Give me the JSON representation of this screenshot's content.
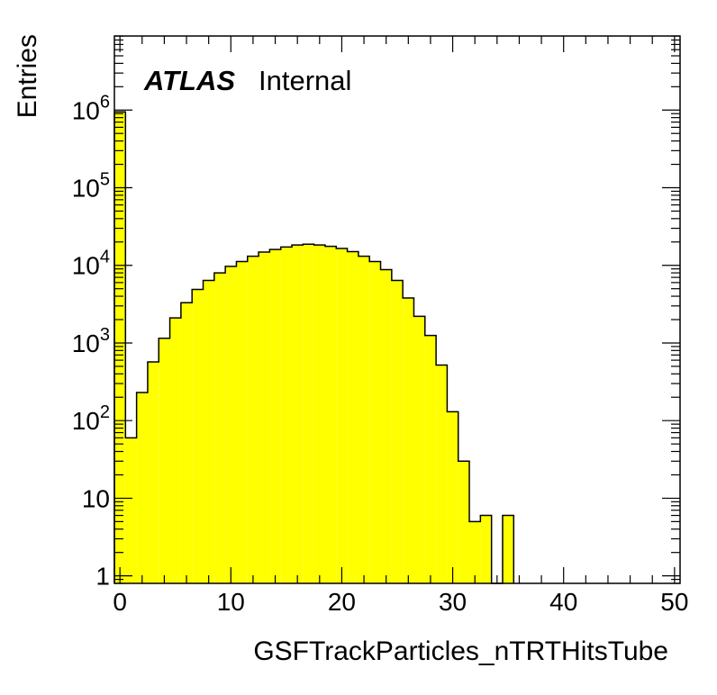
{
  "chart_data": {
    "type": "histogram",
    "xlabel": "GSFTrackParticles_nTRTHitsTube",
    "ylabel": "Entries",
    "annotation": {
      "experiment": "ATLAS",
      "status": "Internal"
    },
    "xlim": [
      -0.5,
      50.5
    ],
    "ylim": [
      0.8,
      9000000
    ],
    "y_scale": "log",
    "bin_width": 1,
    "x_ticks": [
      0,
      10,
      20,
      30,
      40,
      50
    ],
    "x_tick_labels": [
      "0",
      "10",
      "20",
      "30",
      "40",
      "50"
    ],
    "y_tick_labels": [
      {
        "value": 1,
        "base": "1",
        "exp": ""
      },
      {
        "value": 10,
        "base": "10",
        "exp": ""
      },
      {
        "value": 100,
        "base": "10",
        "exp": "2"
      },
      {
        "value": 1000,
        "base": "10",
        "exp": "3"
      },
      {
        "value": 10000,
        "base": "10",
        "exp": "4"
      },
      {
        "value": 100000,
        "base": "10",
        "exp": "5"
      },
      {
        "value": 1000000,
        "base": "10",
        "exp": "6"
      }
    ],
    "fill_color": "#ffff00",
    "line_color": "#000000",
    "bins": [
      {
        "x": 0,
        "y": 950000
      },
      {
        "x": 1,
        "y": 60
      },
      {
        "x": 2,
        "y": 230
      },
      {
        "x": 3,
        "y": 570
      },
      {
        "x": 4,
        "y": 1150
      },
      {
        "x": 5,
        "y": 2100
      },
      {
        "x": 6,
        "y": 3300
      },
      {
        "x": 7,
        "y": 4900
      },
      {
        "x": 8,
        "y": 6400
      },
      {
        "x": 9,
        "y": 8000
      },
      {
        "x": 10,
        "y": 9700
      },
      {
        "x": 11,
        "y": 11200
      },
      {
        "x": 12,
        "y": 13100
      },
      {
        "x": 13,
        "y": 14800
      },
      {
        "x": 14,
        "y": 16000
      },
      {
        "x": 15,
        "y": 17200
      },
      {
        "x": 16,
        "y": 18300
      },
      {
        "x": 17,
        "y": 18700
      },
      {
        "x": 18,
        "y": 18300
      },
      {
        "x": 19,
        "y": 17600
      },
      {
        "x": 20,
        "y": 16500
      },
      {
        "x": 21,
        "y": 15000
      },
      {
        "x": 22,
        "y": 13100
      },
      {
        "x": 23,
        "y": 11200
      },
      {
        "x": 24,
        "y": 8800
      },
      {
        "x": 25,
        "y": 6400
      },
      {
        "x": 26,
        "y": 3800
      },
      {
        "x": 27,
        "y": 2200
      },
      {
        "x": 28,
        "y": 1250
      },
      {
        "x": 29,
        "y": 520
      },
      {
        "x": 30,
        "y": 130
      },
      {
        "x": 31,
        "y": 30
      },
      {
        "x": 32,
        "y": 5
      },
      {
        "x": 33,
        "y": 6
      },
      {
        "x": 34,
        "y": 0
      },
      {
        "x": 35,
        "y": 6
      }
    ]
  }
}
